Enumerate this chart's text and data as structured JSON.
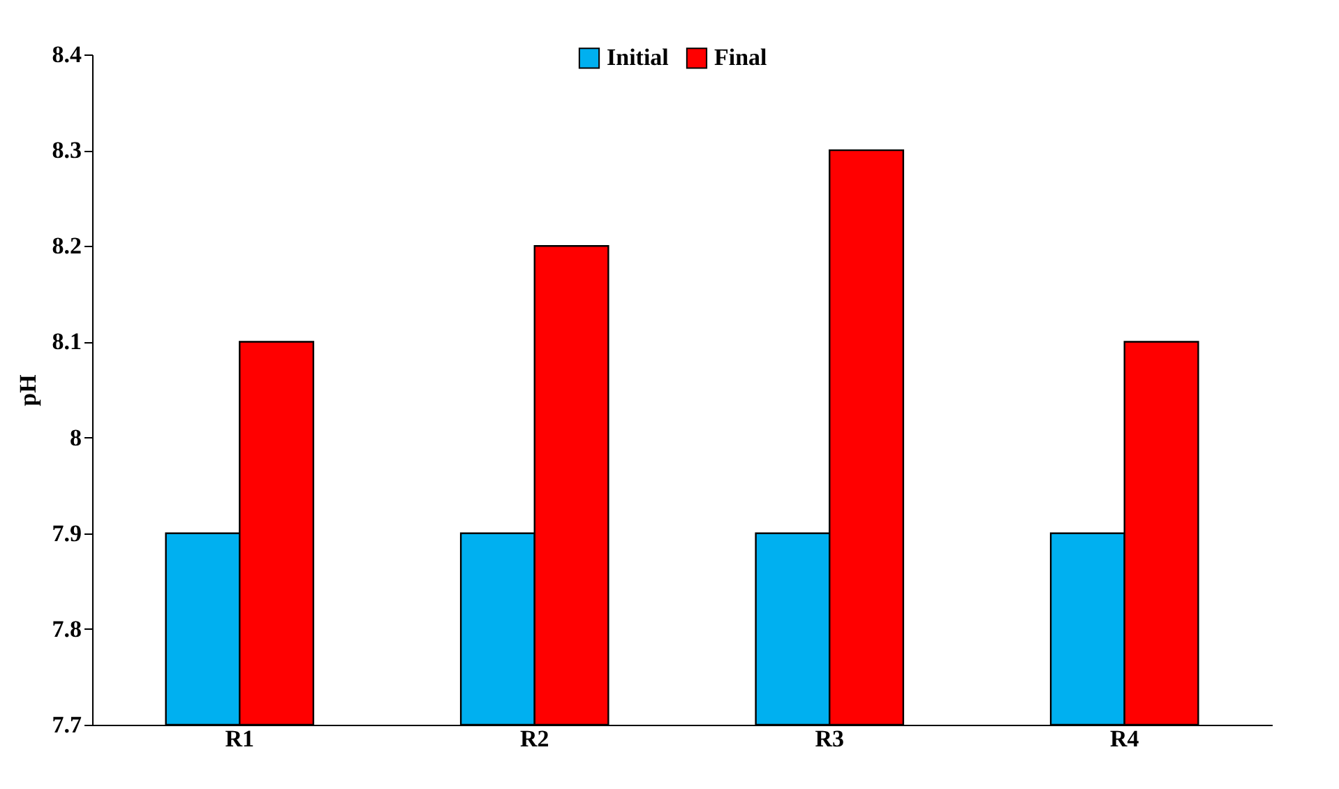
{
  "chart_data": {
    "type": "bar",
    "ylabel": "pH",
    "categories": [
      "R1",
      "R2",
      "R3",
      "R4"
    ],
    "series": [
      {
        "name": "Initial",
        "color": "#00b0f0",
        "values": [
          7.9,
          7.9,
          7.9,
          7.9
        ]
      },
      {
        "name": "Final",
        "color": "#ff0000",
        "values": [
          8.1,
          8.2,
          8.3,
          8.1
        ]
      }
    ],
    "ylim": [
      7.7,
      8.4
    ],
    "yticks": [
      7.7,
      7.8,
      7.9,
      8,
      8.1,
      8.2,
      8.3,
      8.4
    ],
    "grid": false,
    "legend": "top"
  }
}
